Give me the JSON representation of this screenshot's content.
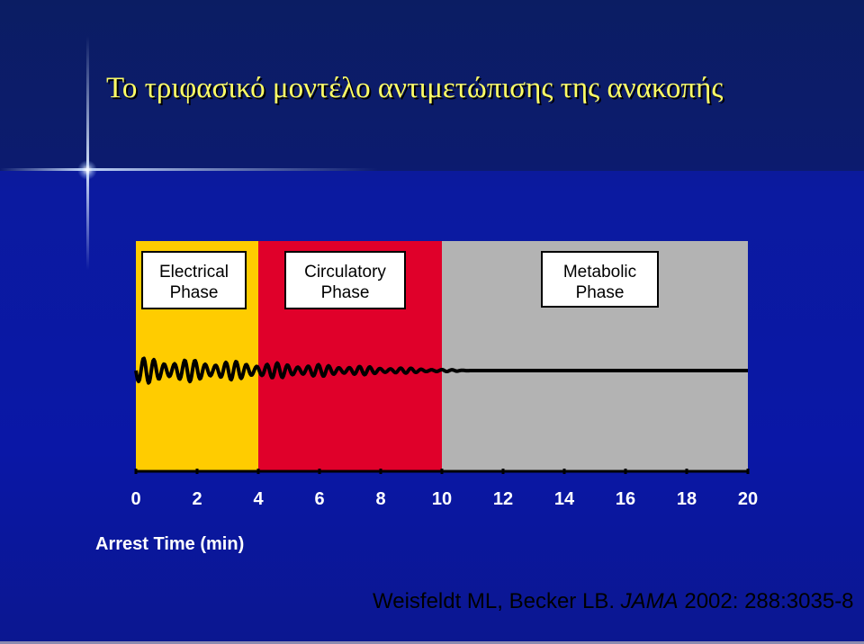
{
  "title": "Το τριφασικό μοντέλο αντιμετώπισης της ανακοπής",
  "chart_data": {
    "type": "area",
    "xlabel": "Arrest Time (min)",
    "xlim": [
      0,
      20
    ],
    "x_ticks": [
      "0",
      "2",
      "4",
      "6",
      "8",
      "10",
      "12",
      "14",
      "16",
      "18",
      "20"
    ],
    "phases": [
      {
        "name_line1": "Electrical",
        "name_line2": "Phase",
        "start": 0,
        "end": 4,
        "color": "#ffcc00"
      },
      {
        "name_line1": "Circulatory",
        "name_line2": "Phase",
        "start": 4,
        "end": 10,
        "color": "#e0002a"
      },
      {
        "name_line1": "Metabolic",
        "name_line2": "Phase",
        "start": 10,
        "end": 20,
        "color": "#b3b3b3"
      }
    ],
    "waveform": "fibrillation amplitude decaying to flat line after ~11 min"
  },
  "citation": {
    "authors": "Weisfeldt ML, Becker LB.",
    "journal": "JAMA",
    "details": "2002: 288:3035-8"
  }
}
